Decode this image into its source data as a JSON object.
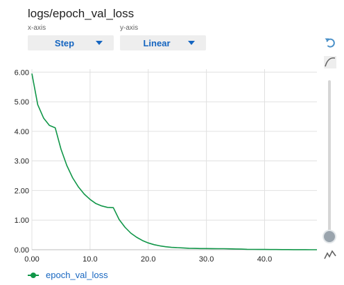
{
  "panel": {
    "title": "logs/epoch_val_loss",
    "x_axis_label": "x-axis",
    "x_axis_value": "Step",
    "y_axis_label": "y-axis",
    "y_axis_value": "Linear"
  },
  "legend": {
    "series_label": "epoch_val_loss"
  },
  "tools": {
    "reset_icon": "reset-zoom-icon",
    "smooth_icon": "smoothing-curve-icon",
    "outlier_icon": "outlier-line-icon"
  },
  "smoothing": {
    "value": 0.96
  },
  "colors": {
    "series": "#109648",
    "accent": "#1565c0"
  },
  "chart_data": {
    "type": "line",
    "xlim": [
      0,
      49
    ],
    "ylim": [
      0,
      6.1
    ],
    "xticks": [
      "0.00",
      "10.0",
      "20.0",
      "30.0",
      "40.0"
    ],
    "xtick_values": [
      0,
      10,
      20,
      30,
      40
    ],
    "yticks": [
      "0.00",
      "1.00",
      "2.00",
      "3.00",
      "4.00",
      "5.00",
      "6.00"
    ],
    "ytick_values": [
      0,
      1,
      2,
      3,
      4,
      5,
      6
    ],
    "grid": true,
    "legend_position": "bottom-left",
    "series": [
      {
        "name": "epoch_val_loss",
        "x": [
          0,
          1,
          2,
          3,
          4,
          5,
          6,
          7,
          8,
          9,
          10,
          11,
          12,
          13,
          14,
          15,
          16,
          17,
          18,
          19,
          20,
          21,
          22,
          23,
          24,
          25,
          26,
          27,
          28,
          29,
          30,
          31,
          32,
          33,
          34,
          35,
          36,
          37,
          38,
          39,
          40,
          41,
          42,
          43,
          44,
          45,
          46,
          47,
          48,
          49
        ],
        "y": [
          5.95,
          4.9,
          4.45,
          4.2,
          4.12,
          3.4,
          2.85,
          2.43,
          2.12,
          1.88,
          1.7,
          1.56,
          1.48,
          1.43,
          1.42,
          1.02,
          0.76,
          0.56,
          0.42,
          0.31,
          0.23,
          0.17,
          0.13,
          0.1,
          0.08,
          0.07,
          0.06,
          0.05,
          0.045,
          0.04,
          0.04,
          0.038,
          0.035,
          0.035,
          0.03,
          0.025,
          0.02,
          0.015,
          0.012,
          0.01,
          0.01,
          0.008,
          0.006,
          0.005,
          0.004,
          0.003,
          0.002,
          0.002,
          0.001,
          0.001
        ]
      }
    ]
  }
}
